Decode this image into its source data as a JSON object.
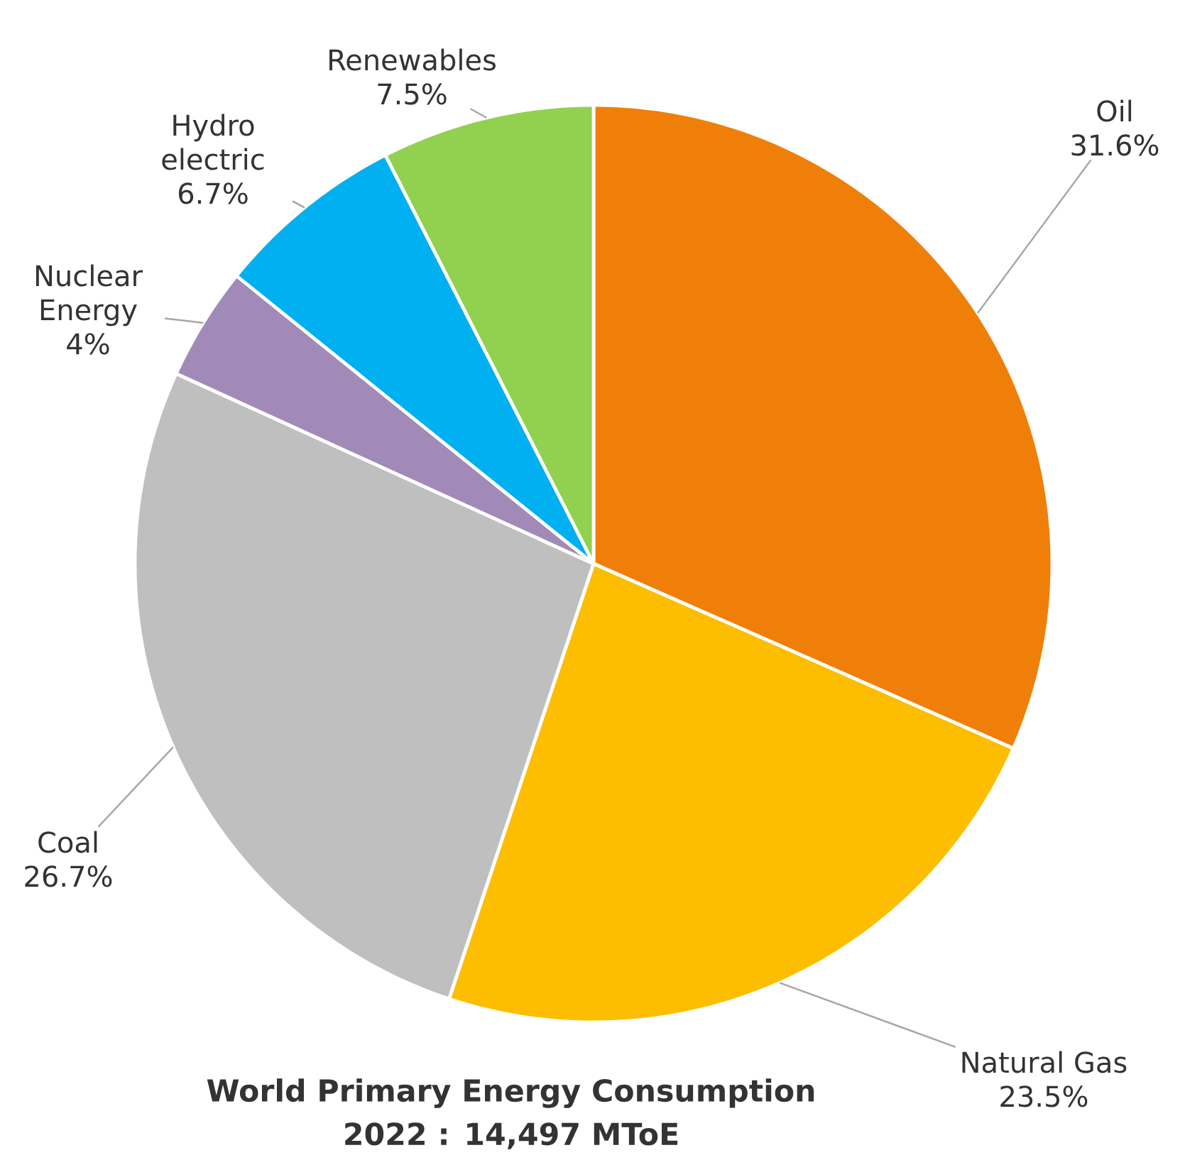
{
  "chart_data": {
    "type": "pie",
    "title": "World Primary Energy Consumption",
    "subtitle": "2022 : 14,497 MToE",
    "categories": [
      "Oil",
      "Natural Gas",
      "Coal",
      "Nuclear Energy",
      "Hydro electric",
      "Renewables"
    ],
    "values": [
      31.6,
      23.5,
      26.7,
      4,
      6.7,
      7.5
    ],
    "value_labels": [
      "31.6%",
      "23.5%",
      "26.7%",
      "4%",
      "6.7%",
      "7.5%"
    ],
    "colors": [
      "#f07f09",
      "#fdbd00",
      "#bfbfbf",
      "#a18ab8",
      "#00b0f0",
      "#92d050"
    ]
  }
}
